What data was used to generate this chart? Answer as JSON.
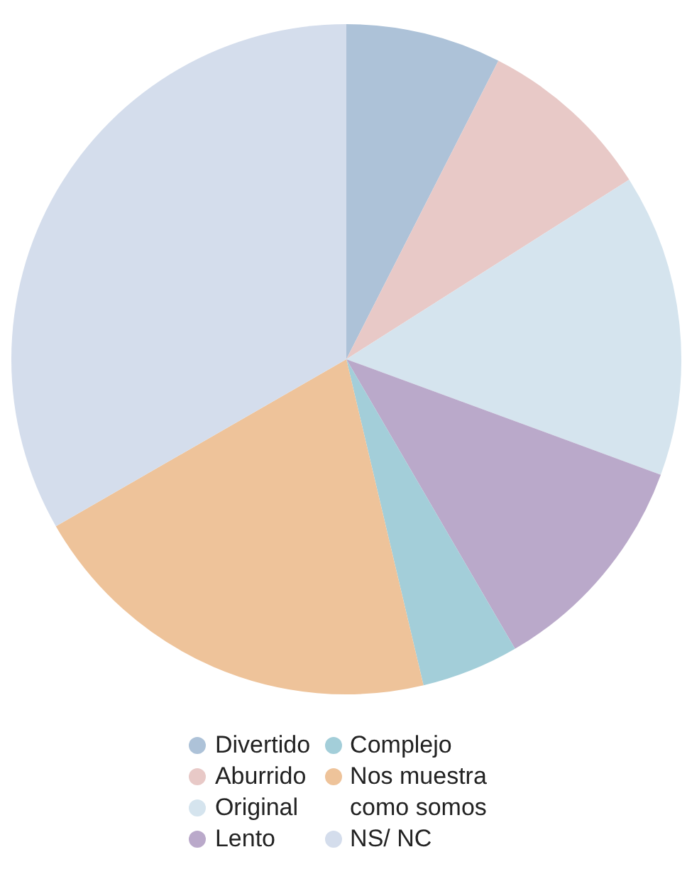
{
  "chart_data": {
    "type": "pie",
    "categories": [
      "Divertido",
      "Aburrido",
      "Original",
      "Lento",
      "Complejo",
      "Nos muestra como somos",
      "NS/ NC"
    ],
    "values": [
      7.5,
      8.5,
      14.6,
      11,
      4.7,
      20.4,
      33.3
    ],
    "colors": [
      "#adc2d8",
      "#e8c9c7",
      "#d5e4ee",
      "#baa9ca",
      "#a3ced9",
      "#eec39a",
      "#d4ddec"
    ],
    "legend": "bottom"
  }
}
